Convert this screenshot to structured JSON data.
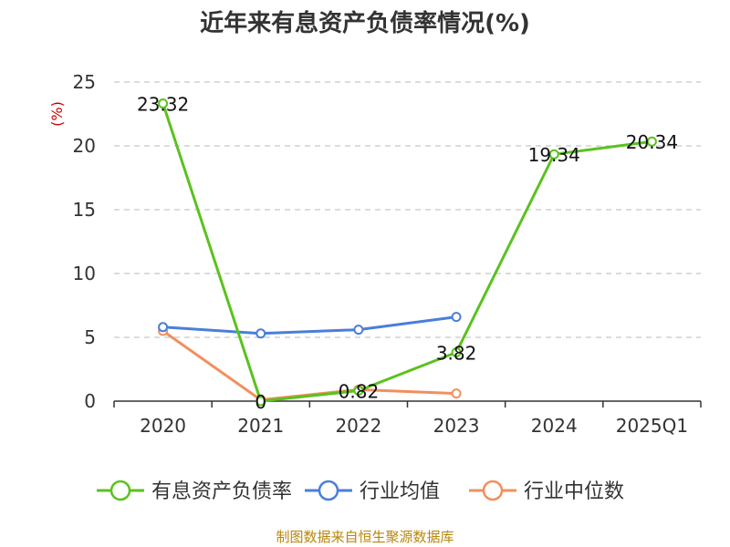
{
  "chart_data": {
    "type": "line",
    "title": "近年来有息资产负债率情况(%)",
    "ylabel": "(%)",
    "categories": [
      "2020",
      "2021",
      "2022",
      "2023",
      "2024",
      "2025Q1"
    ],
    "ylim": [
      0,
      25
    ],
    "yticks": [
      0,
      5,
      10,
      15,
      20,
      25
    ],
    "grid": true,
    "legend_position": "bottom",
    "series": [
      {
        "name": "有息资产负债率",
        "color": "#5ac21e",
        "values": [
          23.32,
          0,
          0.82,
          3.82,
          19.34,
          20.34
        ],
        "labels": [
          "23.32",
          "0",
          "0.82",
          "3.82",
          "19.34",
          "20.34"
        ]
      },
      {
        "name": "行业均值",
        "color": "#4a7fd9",
        "values": [
          5.8,
          5.3,
          5.6,
          6.6,
          null,
          null
        ]
      },
      {
        "name": "行业中位数",
        "color": "#f28f5e",
        "values": [
          5.5,
          0.1,
          0.9,
          0.6,
          null,
          null
        ]
      }
    ]
  },
  "source_note": "制图数据来自恒生聚源数据库"
}
